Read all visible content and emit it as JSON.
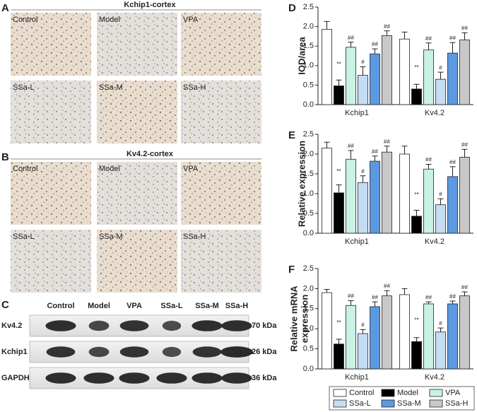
{
  "panels": {
    "A": {
      "label": "A",
      "title": "Kchip1-cortex",
      "images": [
        "Control",
        "Model",
        "VPA",
        "SSa-L",
        "SSa-M",
        "SSa-H"
      ]
    },
    "B": {
      "label": "B",
      "title": "Kv4.2-cortex",
      "images": [
        "Control",
        "Model",
        "VPA",
        "SSa-L",
        "SSa-M",
        "SSa-H"
      ]
    },
    "C": {
      "label": "C",
      "lanes": [
        "Control",
        "Model",
        "VPA",
        "SSa-L",
        "SSa-M",
        "SSa-H"
      ],
      "rows": [
        {
          "name": "Kv4.2",
          "size": "70 kDa"
        },
        {
          "name": "Kchip1",
          "size": "26 kDa"
        },
        {
          "name": "GAPDH",
          "size": "36 kDa"
        }
      ]
    }
  },
  "legend": {
    "items": [
      {
        "name": "Control",
        "color": "#ffffff"
      },
      {
        "name": "Model",
        "color": "#000000"
      },
      {
        "name": "VPA",
        "color": "#c9f2e4"
      },
      {
        "name": "SSa-L",
        "color": "#c6dcf4"
      },
      {
        "name": "SSa-M",
        "color": "#5b9ae0"
      },
      {
        "name": "SSa-H",
        "color": "#c8c8c8"
      }
    ]
  },
  "chart_data": [
    {
      "type": "bar",
      "panel": "D",
      "ylabel": "IOD/area",
      "categories": [
        "Kchip1",
        "Kv4.2"
      ],
      "ylim": [
        0,
        2.5
      ],
      "yticks": [
        {
          "value": 0,
          "label": "0.0"
        },
        0.5,
        {
          "value": 1,
          "label": "1.0"
        },
        1.5,
        {
          "value": 2,
          "label": "2.0"
        },
        2.5
      ],
      "series": [
        {
          "values": [
            1.93,
            1.68
          ],
          "errors": [
            0.2,
            0.18
          ]
        },
        {
          "values": [
            0.48,
            0.4
          ],
          "errors": [
            0.15,
            0.12
          ],
          "annotations": [
            "**",
            "**"
          ]
        },
        {
          "values": [
            1.47,
            1.4
          ],
          "errors": [
            0.13,
            0.18
          ],
          "annotations": [
            "##",
            "##"
          ]
        },
        {
          "values": [
            0.75,
            0.65
          ],
          "errors": [
            0.22,
            0.18
          ],
          "annotations": [
            "#",
            "#"
          ]
        },
        {
          "values": [
            1.3,
            1.32
          ],
          "errors": [
            0.13,
            0.27
          ],
          "annotations": [
            "##",
            "##"
          ]
        },
        {
          "values": [
            1.77,
            1.66
          ],
          "errors": [
            0.12,
            0.18
          ],
          "annotations": [
            "##",
            "##"
          ]
        }
      ]
    },
    {
      "type": "bar",
      "panel": "E",
      "ylabel": "Relative expression",
      "categories": [
        "Kchip1",
        "Kv4.2"
      ],
      "ylim": [
        0,
        2.5
      ],
      "yticks": [
        {
          "value": 0,
          "label": "0.0"
        },
        0.5,
        {
          "value": 1,
          "label": "1.0"
        },
        1.5,
        {
          "value": 2,
          "label": "2.0"
        },
        2.5
      ],
      "series": [
        {
          "values": [
            2.15,
            2.0
          ],
          "errors": [
            0.15,
            0.2
          ]
        },
        {
          "values": [
            1.02,
            0.43
          ],
          "errors": [
            0.2,
            0.15
          ],
          "annotations": [
            "**",
            "**"
          ]
        },
        {
          "values": [
            1.87,
            1.62
          ],
          "errors": [
            0.22,
            0.12
          ],
          "annotations": [
            "##",
            "##"
          ]
        },
        {
          "values": [
            1.28,
            0.72
          ],
          "errors": [
            0.17,
            0.15
          ],
          "annotations": [
            "#",
            "#"
          ]
        },
        {
          "values": [
            1.82,
            1.43
          ],
          "errors": [
            0.13,
            0.25
          ],
          "annotations": [
            "##",
            "##"
          ]
        },
        {
          "values": [
            2.05,
            1.92
          ],
          "errors": [
            0.15,
            0.2
          ],
          "annotations": [
            "##",
            "##"
          ]
        }
      ]
    },
    {
      "type": "bar",
      "panel": "F",
      "ylabel": [
        "Relative mRNA",
        "expression"
      ],
      "categories": [
        "Kchip1",
        "Kv4.2"
      ],
      "ylim": [
        0,
        2.5
      ],
      "yticks": [
        {
          "value": 0,
          "label": "0.0"
        },
        0.5,
        {
          "value": 1,
          "label": "1.0"
        },
        1.5,
        {
          "value": 2,
          "label": "2.0"
        },
        2.5
      ],
      "series": [
        {
          "values": [
            1.9,
            1.85
          ],
          "errors": [
            0.08,
            0.15
          ]
        },
        {
          "values": [
            0.62,
            0.68
          ],
          "errors": [
            0.12,
            0.1
          ],
          "annotations": [
            "**",
            "**"
          ]
        },
        {
          "values": [
            1.58,
            1.62
          ],
          "errors": [
            0.12,
            0.05
          ],
          "annotations": [
            "##",
            "##"
          ]
        },
        {
          "values": [
            0.88,
            0.92
          ],
          "errors": [
            0.1,
            0.1
          ],
          "annotations": [
            "#",
            "#"
          ]
        },
        {
          "values": [
            1.55,
            1.62
          ],
          "errors": [
            0.12,
            0.07
          ],
          "annotations": [
            "##",
            "##"
          ]
        },
        {
          "values": [
            1.82,
            1.82
          ],
          "errors": [
            0.13,
            0.1
          ],
          "annotations": [
            "##",
            "##"
          ]
        }
      ]
    }
  ]
}
